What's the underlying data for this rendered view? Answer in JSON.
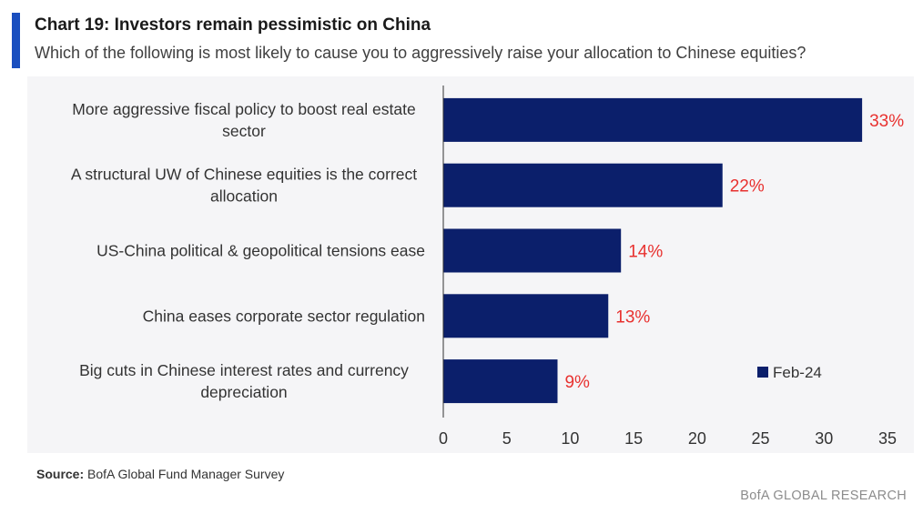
{
  "header": {
    "title": "Chart 19: Investors remain pessimistic on China",
    "subtitle": "Which of the following is most likely to cause you to aggressively raise your allocation to Chinese equities?"
  },
  "chart_data": {
    "type": "bar",
    "orientation": "horizontal",
    "categories": [
      [
        "More aggressive fiscal policy to boost real estate",
        "sector"
      ],
      [
        "A structural UW of Chinese equities is the correct",
        "allocation"
      ],
      [
        "US-China political & geopolitical tensions ease"
      ],
      [
        "China eases corporate sector regulation"
      ],
      [
        "Big cuts in Chinese interest rates and currency",
        "depreciation"
      ]
    ],
    "series": [
      {
        "name": "Feb-24",
        "color": "#0b1f6b",
        "values": [
          33,
          22,
          14,
          13,
          9
        ],
        "data_labels": [
          "33%",
          "22%",
          "14%",
          "13%",
          "9%"
        ]
      }
    ],
    "xlim": [
      0,
      35
    ],
    "xticks": [
      0,
      5,
      10,
      15,
      20,
      25,
      30,
      35
    ],
    "grid": false,
    "legend": "bottom-right",
    "data_label_color": "#e8312f"
  },
  "footer": {
    "source_label": "Source:",
    "source_text": "BofA Global Fund Manager Survey",
    "brand": "BofA GLOBAL RESEARCH"
  },
  "colors": {
    "accent": "#1a4fbf",
    "bar": "#0b1f6b",
    "label": "#e8312f"
  }
}
